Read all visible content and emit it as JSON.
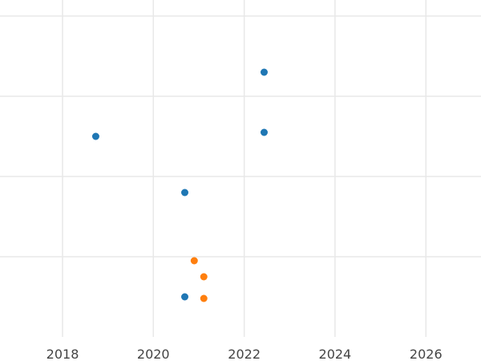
{
  "chart_data": {
    "type": "scatter",
    "title": "",
    "xlabel": "",
    "ylabel": "",
    "x_axis": {
      "type": "date",
      "range": [
        "2016-08-16",
        "2027-03-20"
      ],
      "ticks": [
        {
          "date": "2018-01-01",
          "label": "2018"
        },
        {
          "date": "2020-01-01",
          "label": "2020"
        },
        {
          "date": "2022-01-01",
          "label": "2022"
        },
        {
          "date": "2024-01-01",
          "label": "2024"
        },
        {
          "date": "2026-01-01",
          "label": "2026"
        }
      ]
    },
    "y_axis": {
      "range": [
        0,
        4.2
      ],
      "grid_values": [
        1,
        2,
        3,
        4
      ],
      "tick_labels_visible": false
    },
    "grid": true,
    "series": [
      {
        "color": "#1f77b4",
        "points": [
          {
            "x": "2018-09-25",
            "y": 2.5
          },
          {
            "x": "2020-09-10",
            "y": 1.8
          },
          {
            "x": "2020-09-10",
            "y": 0.5
          },
          {
            "x": "2022-06-10",
            "y": 3.3
          },
          {
            "x": "2022-06-10",
            "y": 2.55
          }
        ]
      },
      {
        "color": "#ff7f0e",
        "points": [
          {
            "x": "2020-11-25",
            "y": 0.95
          },
          {
            "x": "2021-02-10",
            "y": 0.75
          },
          {
            "x": "2021-02-10",
            "y": 0.48
          }
        ]
      }
    ]
  }
}
